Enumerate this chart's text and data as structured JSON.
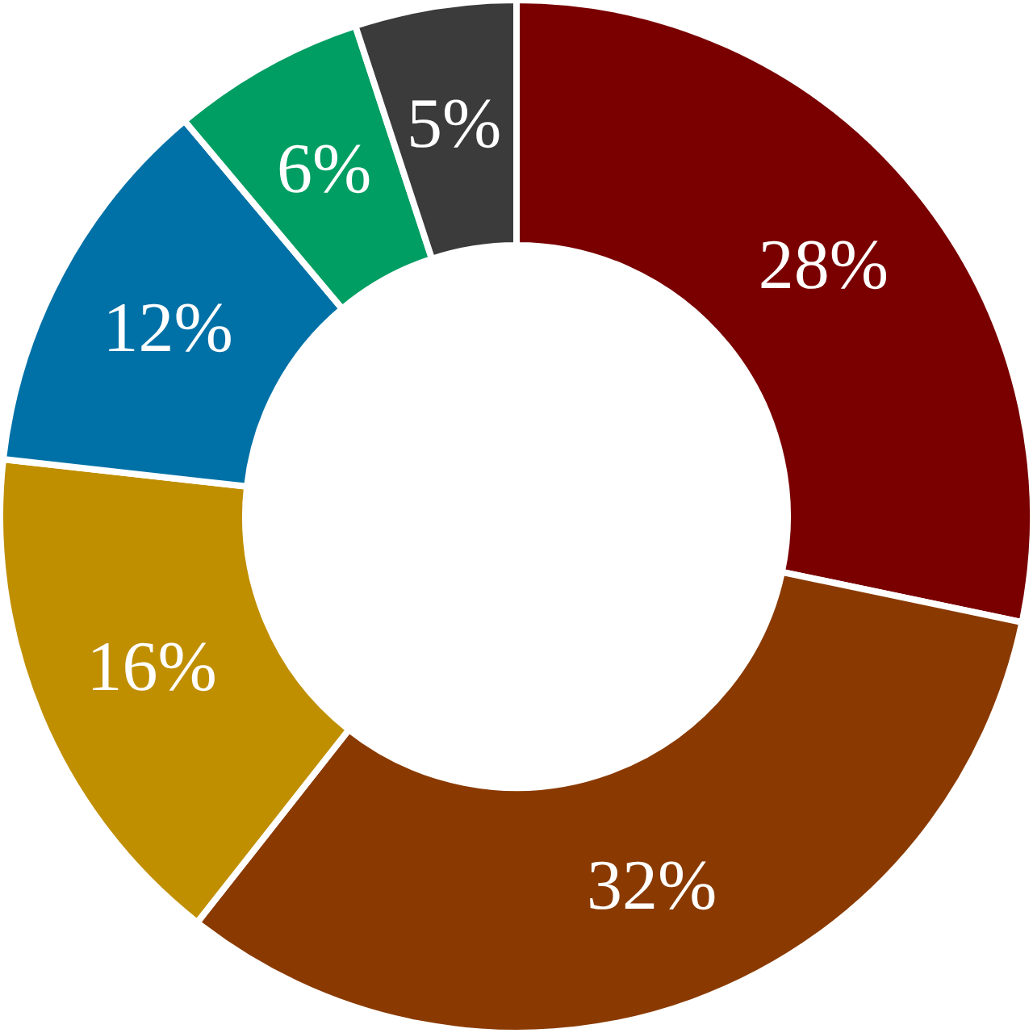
{
  "chart_data": {
    "type": "donut",
    "categories": [
      null,
      null,
      null,
      null,
      null,
      null
    ],
    "values": [
      28,
      32,
      16,
      12,
      6,
      5
    ],
    "colors": [
      "#7a0000",
      "#8a3a00",
      "#c08f00",
      "#0071a6",
      "#009e62",
      "#3b3b3b"
    ],
    "value_labels": [
      "28%",
      "32%",
      "16%",
      "12%",
      "6%",
      "5%"
    ]
  }
}
